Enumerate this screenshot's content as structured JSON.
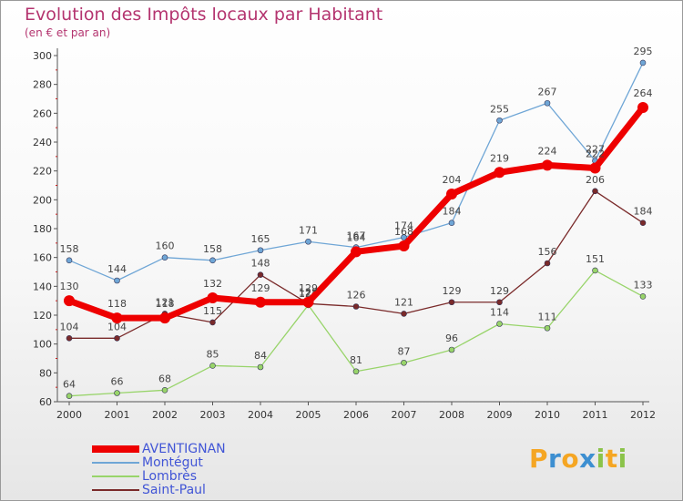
{
  "title": "Evolution des Impôts locaux par Habitant",
  "subtitle": "(en € et par an)",
  "logo": {
    "letters": [
      "P",
      "r",
      "o",
      "x",
      "i",
      "t",
      "i"
    ],
    "colors": [
      "#f5a623",
      "#3d8fd1",
      "#f5a623",
      "#3d8fd1",
      "#8bc34a",
      "#f5a623",
      "#8bc34a"
    ]
  },
  "chart_data": {
    "type": "line",
    "x": [
      "2000",
      "2001",
      "2002",
      "2003",
      "2004",
      "2005",
      "2006",
      "2007",
      "2008",
      "2009",
      "2010",
      "2011",
      "2012"
    ],
    "ylim": [
      60,
      300
    ],
    "yticks": [
      60,
      80,
      100,
      120,
      140,
      160,
      180,
      200,
      220,
      240,
      260,
      280,
      300
    ],
    "grid": false,
    "legend_position": "bottom-left",
    "series": [
      {
        "name": "Montégut",
        "color": "#6fa6d6",
        "values": [
          158,
          144,
          160,
          158,
          165,
          171,
          167,
          174,
          184,
          255,
          267,
          227,
          295
        ],
        "labels": [
          "158",
          "144",
          "160",
          "158",
          "165",
          "171",
          "167",
          "174",
          "184",
          "255",
          "267",
          "227",
          "295"
        ]
      },
      {
        "name": "Lombrès",
        "color": "#98d46a",
        "values": [
          64,
          66,
          68,
          85,
          84,
          127,
          81,
          87,
          96,
          114,
          111,
          151,
          133
        ],
        "labels": [
          "64",
          "66",
          "68",
          "85",
          "84",
          "127",
          "81",
          "87",
          "96",
          "114",
          "111",
          "151",
          "133"
        ]
      },
      {
        "name": "Saint-Paul",
        "color": "#7a2a2a",
        "values": [
          104,
          104,
          121,
          115,
          148,
          128,
          126,
          121,
          129,
          129,
          156,
          206,
          184
        ],
        "labels": [
          "104",
          "104",
          "121",
          "115",
          "148",
          "128",
          "126",
          "121",
          "129",
          "129",
          "156",
          "206",
          "184"
        ]
      },
      {
        "name": "AVENTIGNAN",
        "color": "#ee0000",
        "values": [
          130,
          118,
          118,
          132,
          129,
          129,
          164,
          168,
          204,
          219,
          224,
          222,
          264
        ],
        "labels": [
          "130",
          "118",
          "118",
          "132",
          "129",
          "129",
          "164",
          "168",
          "204",
          "219",
          "224",
          "222",
          "264"
        ]
      }
    ],
    "legend_order": [
      "AVENTIGNAN",
      "Montégut",
      "Lombrès",
      "Saint-Paul"
    ]
  }
}
